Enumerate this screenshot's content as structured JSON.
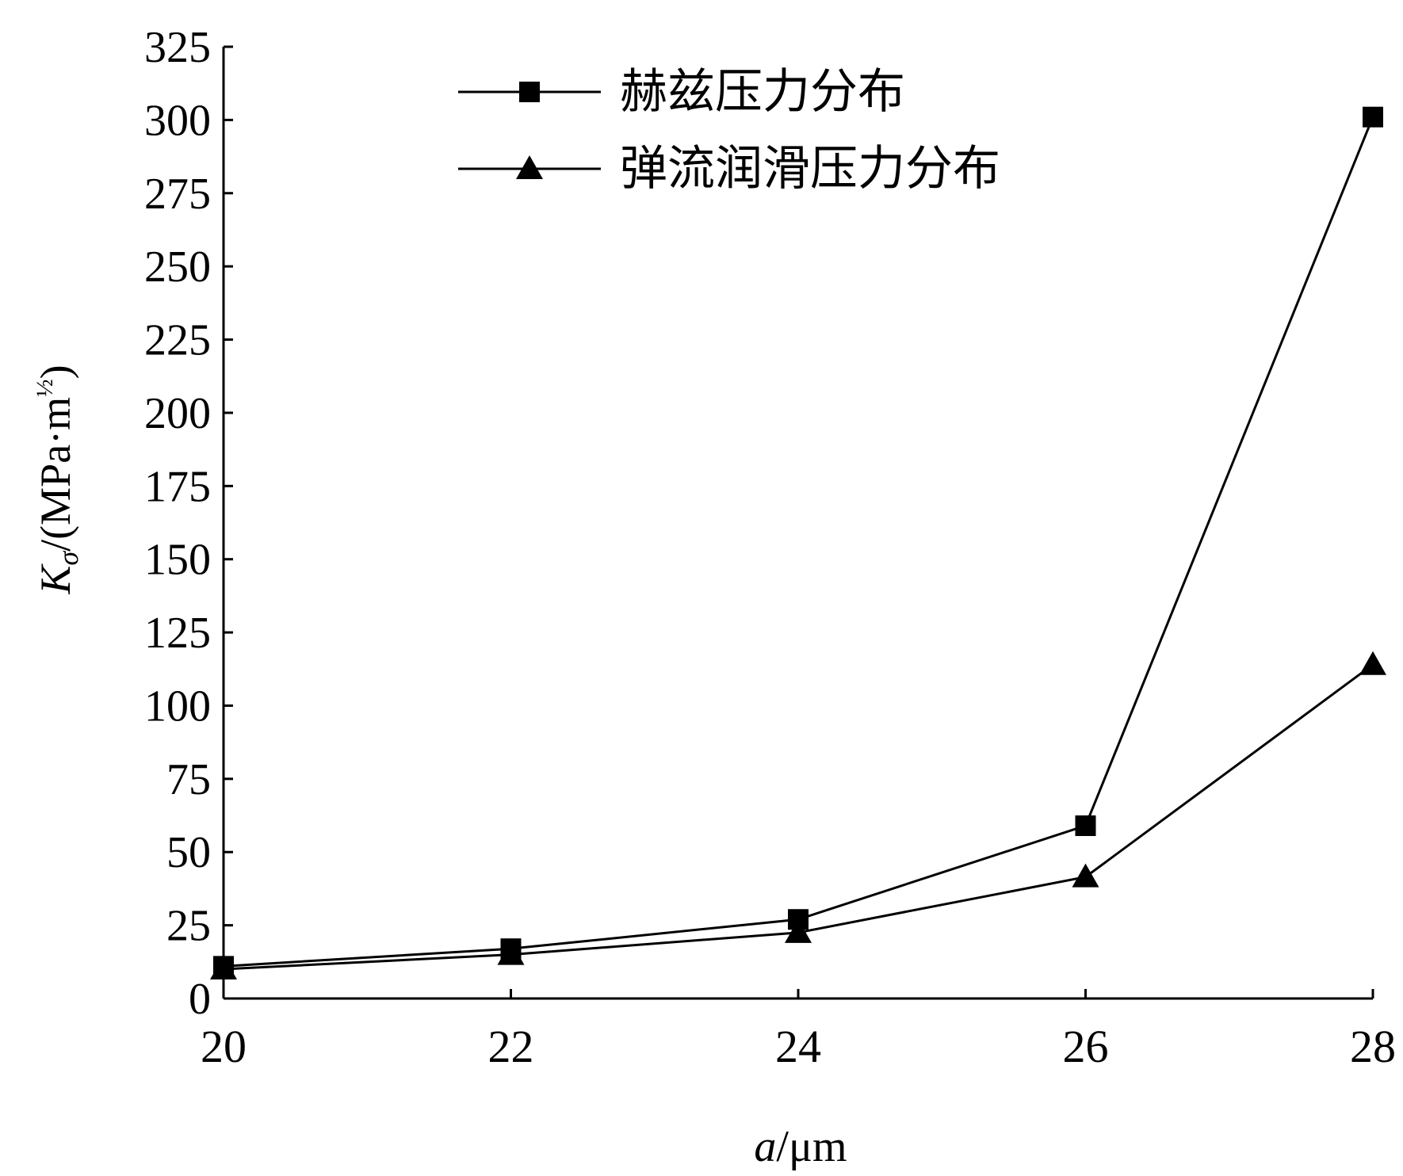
{
  "chart_data": {
    "type": "line",
    "xlabel_var": "a",
    "xlabel_unit": "/μm",
    "ylabel_var": "K",
    "ylabel_sub": "σ",
    "ylabel_unit": "/(MPa·m",
    "ylabel_exp": "½",
    "ylabel_close": ")",
    "x": [
      20,
      22,
      24,
      26,
      28
    ],
    "xlim": [
      20,
      28
    ],
    "ylim": [
      0,
      325
    ],
    "xticks": [
      "20",
      "22",
      "24",
      "26",
      "28"
    ],
    "yticks": [
      "0",
      "25",
      "50",
      "75",
      "100",
      "125",
      "150",
      "175",
      "200",
      "225",
      "250",
      "275",
      "300",
      "325"
    ],
    "legend_position": "top-center",
    "series": [
      {
        "name": "赫兹压力分布",
        "marker": "square",
        "color": "#000000",
        "values": [
          11,
          17,
          27,
          59,
          301
        ]
      },
      {
        "name": "弹流润滑压力分布",
        "marker": "triangle",
        "color": "#000000",
        "values": [
          10,
          15,
          22.5,
          41.5,
          114
        ]
      }
    ]
  }
}
